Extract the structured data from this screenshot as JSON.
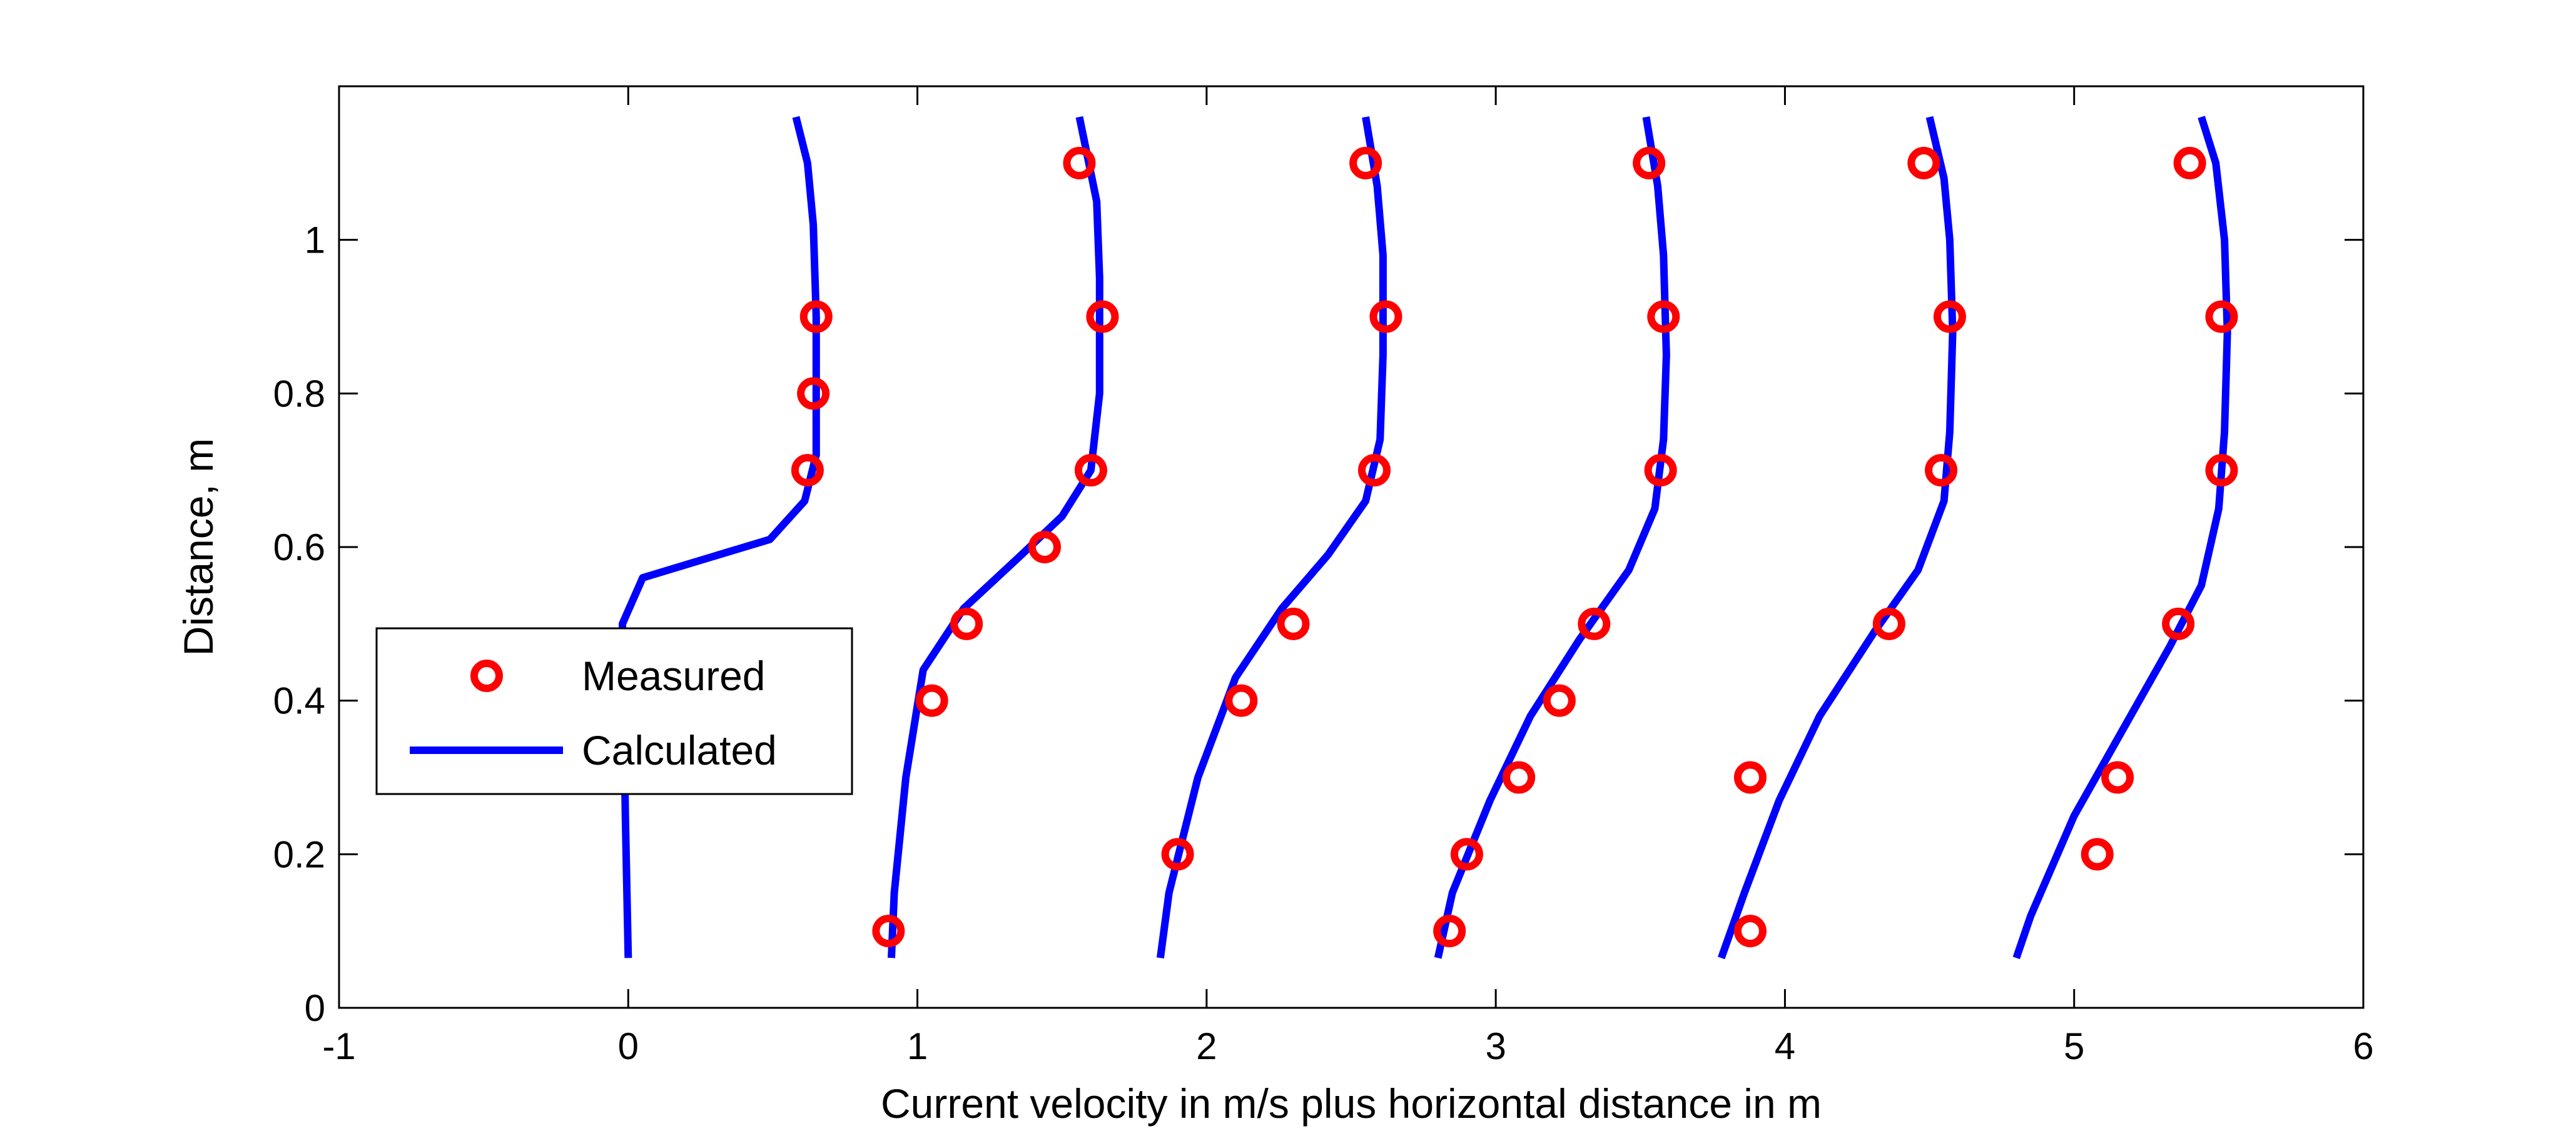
{
  "chart_data": {
    "type": "line",
    "title": "",
    "xlabel": "Current velocity in m/s plus horizontal distance in m",
    "ylabel": "Distance, m",
    "xlim": [
      -1,
      6
    ],
    "ylim": [
      0,
      1.2
    ],
    "xticks": [
      -1,
      0,
      1,
      2,
      3,
      4,
      5,
      6
    ],
    "xtick_labels": [
      "-1",
      "0",
      "1",
      "2",
      "3",
      "4",
      "5",
      "6"
    ],
    "yticks": [
      0,
      0.2,
      0.4,
      0.6,
      0.8,
      1
    ],
    "ytick_labels": [
      "0",
      "0.2",
      "0.4",
      "0.6",
      "0.8",
      "1"
    ],
    "grid": false,
    "legend_position": "center-left",
    "colors": {
      "measured": "#ff0000",
      "calculated": "#0000ff"
    },
    "series": [
      {
        "name": "Measured",
        "type": "scatter",
        "marker": "circle",
        "points": [
          [
            0.62,
            0.7
          ],
          [
            0.64,
            0.8
          ],
          [
            0.65,
            0.9
          ],
          [
            0.9,
            0.1
          ],
          [
            1.05,
            0.4
          ],
          [
            1.17,
            0.5
          ],
          [
            1.44,
            0.6
          ],
          [
            1.6,
            0.7
          ],
          [
            1.64,
            0.9
          ],
          [
            1.56,
            1.1
          ],
          [
            1.9,
            0.2
          ],
          [
            2.12,
            0.4
          ],
          [
            2.3,
            0.5
          ],
          [
            2.58,
            0.7
          ],
          [
            2.62,
            0.9
          ],
          [
            2.55,
            1.1
          ],
          [
            2.84,
            0.1
          ],
          [
            2.9,
            0.2
          ],
          [
            3.08,
            0.3
          ],
          [
            3.22,
            0.4
          ],
          [
            3.34,
            0.5
          ],
          [
            3.57,
            0.7
          ],
          [
            3.58,
            0.9
          ],
          [
            3.53,
            1.1
          ],
          [
            3.88,
            0.1
          ],
          [
            3.88,
            0.3
          ],
          [
            4.36,
            0.5
          ],
          [
            4.54,
            0.7
          ],
          [
            4.57,
            0.9
          ],
          [
            4.48,
            1.1
          ],
          [
            5.08,
            0.2
          ],
          [
            5.15,
            0.3
          ],
          [
            5.36,
            0.5
          ],
          [
            5.51,
            0.7
          ],
          [
            5.51,
            0.9
          ],
          [
            5.4,
            1.1
          ]
        ]
      },
      {
        "name": "Calculated",
        "type": "line",
        "profiles": [
          [
            [
              0.0,
              0.065
            ],
            [
              -0.01,
              0.25
            ],
            [
              -0.02,
              0.5
            ],
            [
              0.05,
              0.56
            ],
            [
              0.49,
              0.61
            ],
            [
              0.61,
              0.66
            ],
            [
              0.65,
              0.72
            ],
            [
              0.65,
              0.9
            ],
            [
              0.64,
              1.02
            ],
            [
              0.62,
              1.1
            ],
            [
              0.58,
              1.16
            ]
          ],
          [
            [
              0.91,
              0.065
            ],
            [
              0.92,
              0.15
            ],
            [
              0.96,
              0.3
            ],
            [
              1.02,
              0.44
            ],
            [
              1.16,
              0.52
            ],
            [
              1.36,
              0.59
            ],
            [
              1.5,
              0.64
            ],
            [
              1.6,
              0.7
            ],
            [
              1.63,
              0.8
            ],
            [
              1.63,
              0.95
            ],
            [
              1.62,
              1.05
            ],
            [
              1.56,
              1.16
            ]
          ],
          [
            [
              1.84,
              0.065
            ],
            [
              1.87,
              0.15
            ],
            [
              1.97,
              0.3
            ],
            [
              2.1,
              0.43
            ],
            [
              2.26,
              0.52
            ],
            [
              2.42,
              0.59
            ],
            [
              2.55,
              0.66
            ],
            [
              2.6,
              0.74
            ],
            [
              2.61,
              0.85
            ],
            [
              2.61,
              0.98
            ],
            [
              2.59,
              1.07
            ],
            [
              2.55,
              1.16
            ]
          ],
          [
            [
              2.8,
              0.065
            ],
            [
              2.85,
              0.15
            ],
            [
              2.98,
              0.27
            ],
            [
              3.12,
              0.38
            ],
            [
              3.29,
              0.48
            ],
            [
              3.46,
              0.57
            ],
            [
              3.55,
              0.65
            ],
            [
              3.58,
              0.74
            ],
            [
              3.59,
              0.85
            ],
            [
              3.58,
              0.98
            ],
            [
              3.56,
              1.07
            ],
            [
              3.52,
              1.16
            ]
          ],
          [
            [
              3.78,
              0.065
            ],
            [
              3.86,
              0.15
            ],
            [
              3.98,
              0.27
            ],
            [
              4.12,
              0.38
            ],
            [
              4.31,
              0.49
            ],
            [
              4.46,
              0.57
            ],
            [
              4.55,
              0.66
            ],
            [
              4.57,
              0.75
            ],
            [
              4.58,
              0.88
            ],
            [
              4.57,
              1.0
            ],
            [
              4.55,
              1.08
            ],
            [
              4.5,
              1.16
            ]
          ],
          [
            [
              4.8,
              0.065
            ],
            [
              4.85,
              0.12
            ],
            [
              5.0,
              0.25
            ],
            [
              5.18,
              0.37
            ],
            [
              5.33,
              0.47
            ],
            [
              5.44,
              0.55
            ],
            [
              5.5,
              0.65
            ],
            [
              5.52,
              0.75
            ],
            [
              5.53,
              0.88
            ],
            [
              5.52,
              1.0
            ],
            [
              5.49,
              1.1
            ],
            [
              5.44,
              1.16
            ]
          ]
        ]
      }
    ]
  }
}
